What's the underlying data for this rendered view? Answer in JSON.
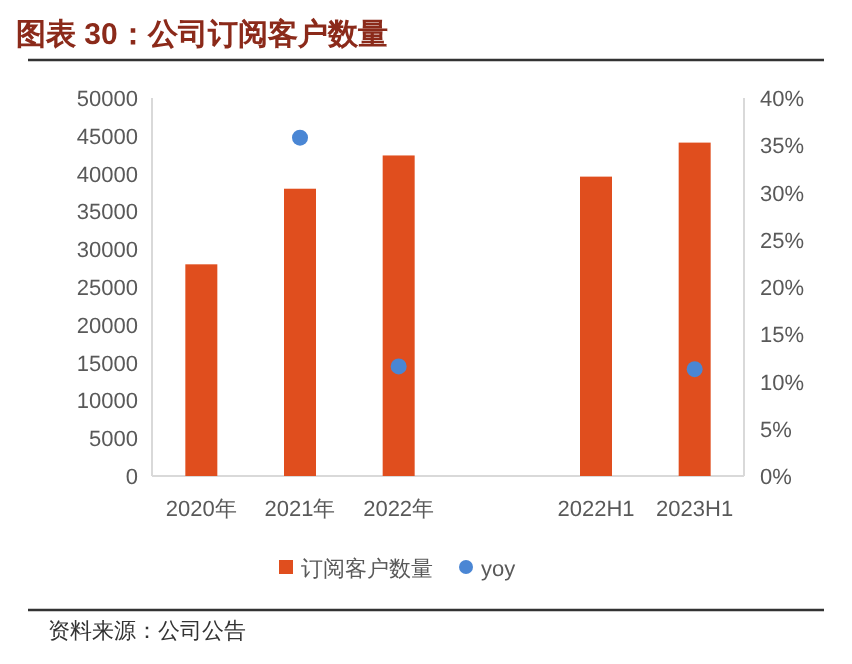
{
  "chart_data": {
    "type": "bar",
    "title": "图表 30：公司订阅客户数量",
    "categories": [
      "2020年",
      "2021年",
      "2022年",
      null,
      "2022H1",
      "2023H1"
    ],
    "series": [
      {
        "name": "订阅客户数量",
        "color": "#e04e1e",
        "values": [
          28000,
          38000,
          42400,
          null,
          39600,
          44100
        ]
      },
      {
        "name": "yoy",
        "type": "scatter",
        "axis": "y2",
        "marker": "circle",
        "color": "#4a86d4",
        "values": [
          null,
          35.8,
          11.6,
          null,
          null,
          11.3
        ]
      }
    ],
    "ylim": [
      0,
      50000
    ],
    "yticks": [
      0,
      5000,
      10000,
      15000,
      20000,
      25000,
      30000,
      35000,
      40000,
      45000,
      50000
    ],
    "y2lim": [
      0,
      40
    ],
    "y2ticks": [
      {
        "value": 0,
        "label": "0%"
      },
      {
        "value": 5,
        "label": "5%"
      },
      {
        "value": 10,
        "label": "10%"
      },
      {
        "value": 15,
        "label": "15%"
      },
      {
        "value": 20,
        "label": "20%"
      },
      {
        "value": 25,
        "label": "25%"
      },
      {
        "value": 30,
        "label": "30%"
      },
      {
        "value": 35,
        "label": "35%"
      },
      {
        "value": 40,
        "label": "40%"
      }
    ],
    "legend": "bottom",
    "grid": false,
    "annotations": [
      "资料来源：公司公告"
    ]
  }
}
